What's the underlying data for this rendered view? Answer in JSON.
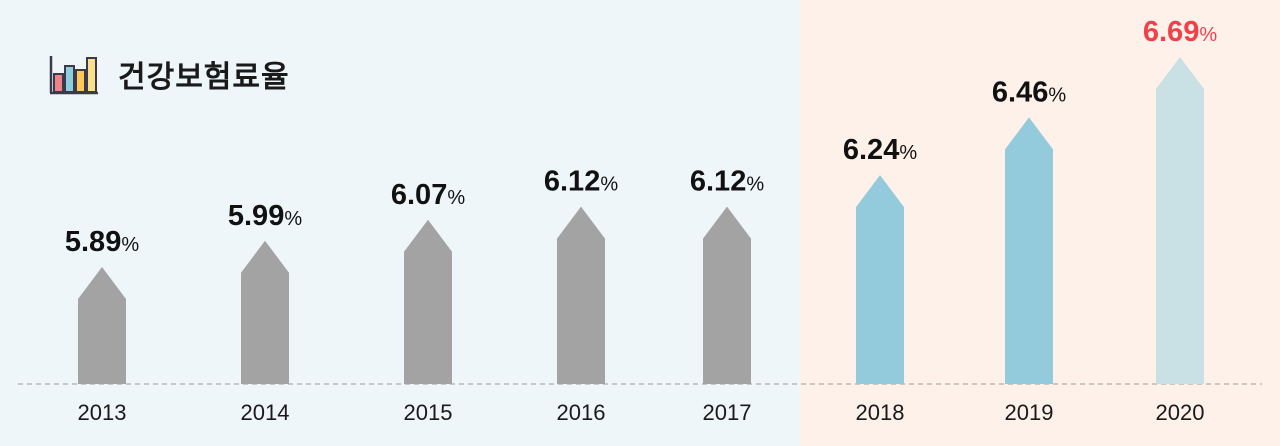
{
  "title": "건강보험료율",
  "icon": "bar-chart-icon",
  "colors": {
    "past_bg": "#eef6f9",
    "recent_bg": "#fdf1ea",
    "past_bar": "#a3a3a3",
    "recent_bar": "#93cbdc",
    "latest_bar": "#c9e0e5",
    "label": "#111111",
    "latest_label": "#f0414b",
    "baseline": "#b8b8b8"
  },
  "chart_data": {
    "type": "bar",
    "categories": [
      "2013",
      "2014",
      "2015",
      "2016",
      "2017",
      "2018",
      "2019",
      "2020"
    ],
    "values": [
      5.89,
      5.99,
      6.07,
      6.12,
      6.12,
      6.24,
      6.46,
      6.69
    ],
    "value_labels": [
      "5.89",
      "5.99",
      "6.07",
      "6.12",
      "6.12",
      "6.24",
      "6.46",
      "6.69"
    ],
    "unit": "%",
    "highlight_from_index": 5,
    "grid": false,
    "legend": "none"
  }
}
